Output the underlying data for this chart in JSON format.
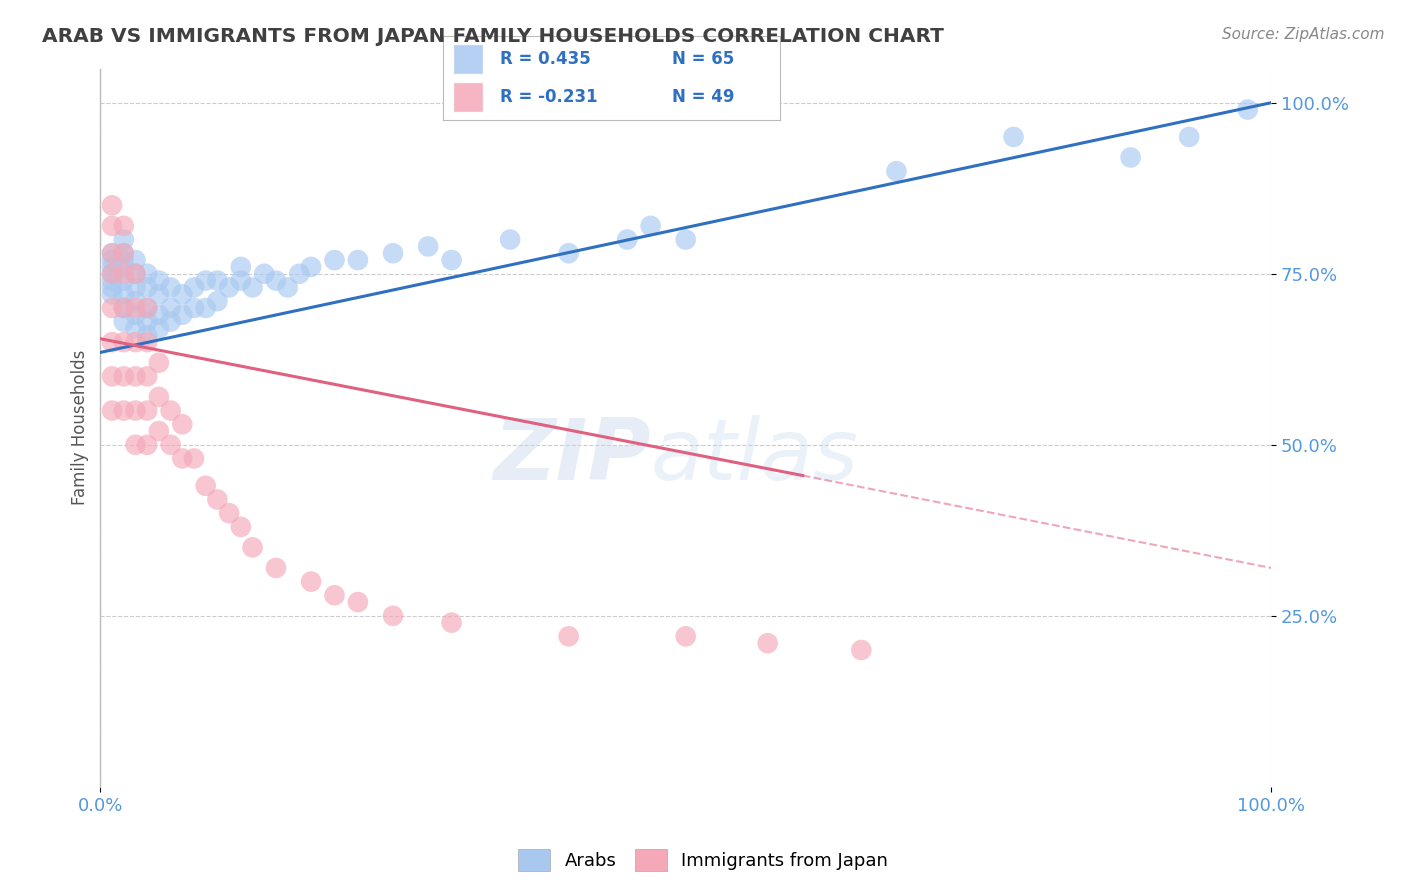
{
  "title": "ARAB VS IMMIGRANTS FROM JAPAN FAMILY HOUSEHOLDS CORRELATION CHART",
  "source_text": "Source: ZipAtlas.com",
  "ylabel": "Family Households",
  "watermark": "ZIPatlas",
  "legend_blue_r": "R = 0.435",
  "legend_blue_n": "N = 65",
  "legend_pink_r": "R = -0.231",
  "legend_pink_n": "N = 49",
  "legend_blue_label": "Arabs",
  "legend_pink_label": "Immigrants from Japan",
  "xlim": [
    0.0,
    1.0
  ],
  "ylim": [
    0.0,
    1.05
  ],
  "yticks": [
    0.25,
    0.5,
    0.75,
    1.0
  ],
  "ytick_labels": [
    "25.0%",
    "50.0%",
    "75.0%",
    "100.0%"
  ],
  "xticks": [
    0.0,
    1.0
  ],
  "xtick_labels": [
    "0.0%",
    "100.0%"
  ],
  "blue_color": "#A8C8F0",
  "pink_color": "#F4A8B8",
  "blue_line_color": "#3070C0",
  "pink_line_color": "#E06080",
  "grid_color": "#CCCCCC",
  "background_color": "#FFFFFF",
  "title_color": "#404040",
  "axis_tick_color": "#5599DD",
  "blue_line_start_y": 0.635,
  "blue_line_end_y": 1.0,
  "pink_line_start_y": 0.655,
  "pink_line_solid_end_x": 0.6,
  "pink_line_solid_end_y": 0.455,
  "pink_line_dashed_end_x": 1.0,
  "pink_line_dashed_end_y": 0.32,
  "blue_x": [
    0.01,
    0.01,
    0.01,
    0.01,
    0.01,
    0.01,
    0.01,
    0.02,
    0.02,
    0.02,
    0.02,
    0.02,
    0.02,
    0.02,
    0.02,
    0.03,
    0.03,
    0.03,
    0.03,
    0.03,
    0.03,
    0.04,
    0.04,
    0.04,
    0.04,
    0.04,
    0.05,
    0.05,
    0.05,
    0.05,
    0.06,
    0.06,
    0.06,
    0.07,
    0.07,
    0.08,
    0.08,
    0.09,
    0.09,
    0.1,
    0.1,
    0.11,
    0.12,
    0.12,
    0.13,
    0.14,
    0.15,
    0.16,
    0.17,
    0.18,
    0.2,
    0.22,
    0.25,
    0.28,
    0.3,
    0.35,
    0.4,
    0.45,
    0.47,
    0.5,
    0.68,
    0.78,
    0.88,
    0.93,
    0.98
  ],
  "blue_y": [
    0.72,
    0.73,
    0.74,
    0.75,
    0.76,
    0.77,
    0.78,
    0.68,
    0.7,
    0.72,
    0.74,
    0.76,
    0.77,
    0.78,
    0.8,
    0.67,
    0.69,
    0.71,
    0.73,
    0.75,
    0.77,
    0.66,
    0.68,
    0.7,
    0.73,
    0.75,
    0.67,
    0.69,
    0.72,
    0.74,
    0.68,
    0.7,
    0.73,
    0.69,
    0.72,
    0.7,
    0.73,
    0.7,
    0.74,
    0.71,
    0.74,
    0.73,
    0.74,
    0.76,
    0.73,
    0.75,
    0.74,
    0.73,
    0.75,
    0.76,
    0.77,
    0.77,
    0.78,
    0.79,
    0.77,
    0.8,
    0.78,
    0.8,
    0.82,
    0.8,
    0.9,
    0.95,
    0.92,
    0.95,
    0.99
  ],
  "pink_x": [
    0.01,
    0.01,
    0.01,
    0.01,
    0.01,
    0.01,
    0.01,
    0.01,
    0.02,
    0.02,
    0.02,
    0.02,
    0.02,
    0.02,
    0.02,
    0.03,
    0.03,
    0.03,
    0.03,
    0.03,
    0.03,
    0.04,
    0.04,
    0.04,
    0.04,
    0.04,
    0.05,
    0.05,
    0.05,
    0.06,
    0.06,
    0.07,
    0.07,
    0.08,
    0.09,
    0.1,
    0.11,
    0.12,
    0.13,
    0.15,
    0.18,
    0.2,
    0.22,
    0.25,
    0.3,
    0.4,
    0.5,
    0.57,
    0.65
  ],
  "pink_y": [
    0.55,
    0.6,
    0.65,
    0.7,
    0.75,
    0.78,
    0.82,
    0.85,
    0.55,
    0.6,
    0.65,
    0.7,
    0.75,
    0.78,
    0.82,
    0.5,
    0.55,
    0.6,
    0.65,
    0.7,
    0.75,
    0.5,
    0.55,
    0.6,
    0.65,
    0.7,
    0.52,
    0.57,
    0.62,
    0.5,
    0.55,
    0.48,
    0.53,
    0.48,
    0.44,
    0.42,
    0.4,
    0.38,
    0.35,
    0.32,
    0.3,
    0.28,
    0.27,
    0.25,
    0.24,
    0.22,
    0.22,
    0.21,
    0.2
  ]
}
